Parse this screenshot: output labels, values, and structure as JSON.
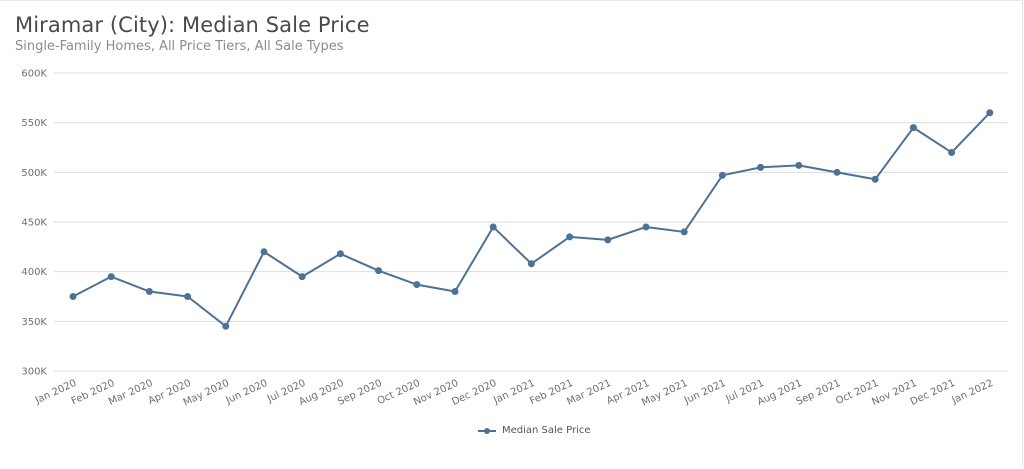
{
  "header": {
    "title": "Miramar (City): Median Sale Price",
    "subtitle": "Single-Family Homes, All Price Tiers, All Sale Types"
  },
  "legend": {
    "label": "Median Sale Price"
  },
  "colors": {
    "series": "#4e7196",
    "grid": "#dddddd",
    "tick_text": "#6f6f6f"
  },
  "chart_data": {
    "type": "line",
    "title": "Miramar (City): Median Sale Price",
    "subtitle": "Single-Family Homes, All Price Tiers, All Sale Types",
    "xlabel": "",
    "ylabel": "",
    "ylim": [
      300000,
      600000
    ],
    "yticks": [
      "300K",
      "350K",
      "400K",
      "450K",
      "500K",
      "550K",
      "600K"
    ],
    "grid": true,
    "legend_position": "bottom",
    "categories": [
      "Jan 2020",
      "Feb 2020",
      "Mar 2020",
      "Apr 2020",
      "May 2020",
      "Jun 2020",
      "Jul 2020",
      "Aug 2020",
      "Sep 2020",
      "Oct 2020",
      "Nov 2020",
      "Dec 2020",
      "Jan 2021",
      "Feb 2021",
      "Mar 2021",
      "Apr 2021",
      "May 2021",
      "Jun 2021",
      "Jul 2021",
      "Aug 2021",
      "Sep 2021",
      "Oct 2021",
      "Nov 2021",
      "Dec 2021",
      "Jan 2022"
    ],
    "series": [
      {
        "name": "Median Sale Price",
        "values": [
          375000,
          395000,
          380000,
          375000,
          345000,
          420000,
          395000,
          418000,
          401000,
          387000,
          380000,
          445000,
          408000,
          435000,
          432000,
          445000,
          440000,
          497000,
          505000,
          507000,
          500000,
          493000,
          545000,
          520000,
          560000
        ]
      }
    ]
  }
}
